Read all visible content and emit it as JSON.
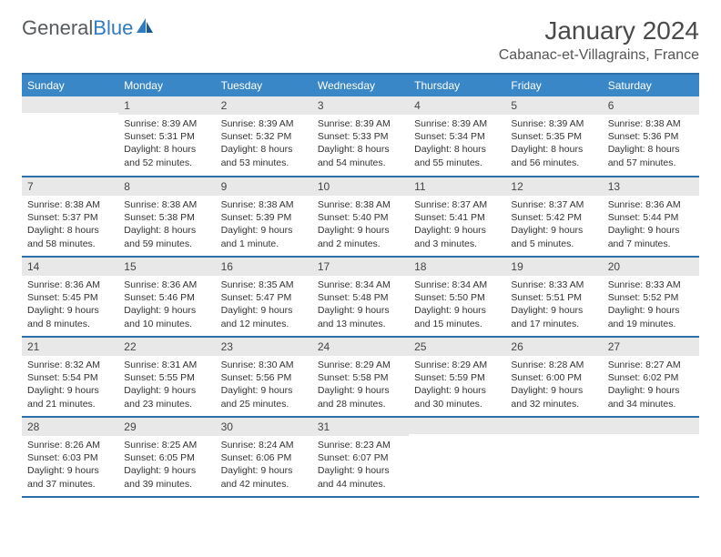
{
  "logo": {
    "part1": "General",
    "part2": "Blue"
  },
  "title": "January 2024",
  "location": "Cabanac-et-Villagrains, France",
  "colors": {
    "header_bg": "#3a87c7",
    "header_border": "#2f6fa8",
    "daynum_bg": "#e8e8e8",
    "text": "#333333"
  },
  "day_headers": [
    "Sunday",
    "Monday",
    "Tuesday",
    "Wednesday",
    "Thursday",
    "Friday",
    "Saturday"
  ],
  "weeks": [
    [
      {
        "num": "",
        "lines": []
      },
      {
        "num": "1",
        "lines": [
          "Sunrise: 8:39 AM",
          "Sunset: 5:31 PM",
          "Daylight: 8 hours",
          "and 52 minutes."
        ]
      },
      {
        "num": "2",
        "lines": [
          "Sunrise: 8:39 AM",
          "Sunset: 5:32 PM",
          "Daylight: 8 hours",
          "and 53 minutes."
        ]
      },
      {
        "num": "3",
        "lines": [
          "Sunrise: 8:39 AM",
          "Sunset: 5:33 PM",
          "Daylight: 8 hours",
          "and 54 minutes."
        ]
      },
      {
        "num": "4",
        "lines": [
          "Sunrise: 8:39 AM",
          "Sunset: 5:34 PM",
          "Daylight: 8 hours",
          "and 55 minutes."
        ]
      },
      {
        "num": "5",
        "lines": [
          "Sunrise: 8:39 AM",
          "Sunset: 5:35 PM",
          "Daylight: 8 hours",
          "and 56 minutes."
        ]
      },
      {
        "num": "6",
        "lines": [
          "Sunrise: 8:38 AM",
          "Sunset: 5:36 PM",
          "Daylight: 8 hours",
          "and 57 minutes."
        ]
      }
    ],
    [
      {
        "num": "7",
        "lines": [
          "Sunrise: 8:38 AM",
          "Sunset: 5:37 PM",
          "Daylight: 8 hours",
          "and 58 minutes."
        ]
      },
      {
        "num": "8",
        "lines": [
          "Sunrise: 8:38 AM",
          "Sunset: 5:38 PM",
          "Daylight: 8 hours",
          "and 59 minutes."
        ]
      },
      {
        "num": "9",
        "lines": [
          "Sunrise: 8:38 AM",
          "Sunset: 5:39 PM",
          "Daylight: 9 hours",
          "and 1 minute."
        ]
      },
      {
        "num": "10",
        "lines": [
          "Sunrise: 8:38 AM",
          "Sunset: 5:40 PM",
          "Daylight: 9 hours",
          "and 2 minutes."
        ]
      },
      {
        "num": "11",
        "lines": [
          "Sunrise: 8:37 AM",
          "Sunset: 5:41 PM",
          "Daylight: 9 hours",
          "and 3 minutes."
        ]
      },
      {
        "num": "12",
        "lines": [
          "Sunrise: 8:37 AM",
          "Sunset: 5:42 PM",
          "Daylight: 9 hours",
          "and 5 minutes."
        ]
      },
      {
        "num": "13",
        "lines": [
          "Sunrise: 8:36 AM",
          "Sunset: 5:44 PM",
          "Daylight: 9 hours",
          "and 7 minutes."
        ]
      }
    ],
    [
      {
        "num": "14",
        "lines": [
          "Sunrise: 8:36 AM",
          "Sunset: 5:45 PM",
          "Daylight: 9 hours",
          "and 8 minutes."
        ]
      },
      {
        "num": "15",
        "lines": [
          "Sunrise: 8:36 AM",
          "Sunset: 5:46 PM",
          "Daylight: 9 hours",
          "and 10 minutes."
        ]
      },
      {
        "num": "16",
        "lines": [
          "Sunrise: 8:35 AM",
          "Sunset: 5:47 PM",
          "Daylight: 9 hours",
          "and 12 minutes."
        ]
      },
      {
        "num": "17",
        "lines": [
          "Sunrise: 8:34 AM",
          "Sunset: 5:48 PM",
          "Daylight: 9 hours",
          "and 13 minutes."
        ]
      },
      {
        "num": "18",
        "lines": [
          "Sunrise: 8:34 AM",
          "Sunset: 5:50 PM",
          "Daylight: 9 hours",
          "and 15 minutes."
        ]
      },
      {
        "num": "19",
        "lines": [
          "Sunrise: 8:33 AM",
          "Sunset: 5:51 PM",
          "Daylight: 9 hours",
          "and 17 minutes."
        ]
      },
      {
        "num": "20",
        "lines": [
          "Sunrise: 8:33 AM",
          "Sunset: 5:52 PM",
          "Daylight: 9 hours",
          "and 19 minutes."
        ]
      }
    ],
    [
      {
        "num": "21",
        "lines": [
          "Sunrise: 8:32 AM",
          "Sunset: 5:54 PM",
          "Daylight: 9 hours",
          "and 21 minutes."
        ]
      },
      {
        "num": "22",
        "lines": [
          "Sunrise: 8:31 AM",
          "Sunset: 5:55 PM",
          "Daylight: 9 hours",
          "and 23 minutes."
        ]
      },
      {
        "num": "23",
        "lines": [
          "Sunrise: 8:30 AM",
          "Sunset: 5:56 PM",
          "Daylight: 9 hours",
          "and 25 minutes."
        ]
      },
      {
        "num": "24",
        "lines": [
          "Sunrise: 8:29 AM",
          "Sunset: 5:58 PM",
          "Daylight: 9 hours",
          "and 28 minutes."
        ]
      },
      {
        "num": "25",
        "lines": [
          "Sunrise: 8:29 AM",
          "Sunset: 5:59 PM",
          "Daylight: 9 hours",
          "and 30 minutes."
        ]
      },
      {
        "num": "26",
        "lines": [
          "Sunrise: 8:28 AM",
          "Sunset: 6:00 PM",
          "Daylight: 9 hours",
          "and 32 minutes."
        ]
      },
      {
        "num": "27",
        "lines": [
          "Sunrise: 8:27 AM",
          "Sunset: 6:02 PM",
          "Daylight: 9 hours",
          "and 34 minutes."
        ]
      }
    ],
    [
      {
        "num": "28",
        "lines": [
          "Sunrise: 8:26 AM",
          "Sunset: 6:03 PM",
          "Daylight: 9 hours",
          "and 37 minutes."
        ]
      },
      {
        "num": "29",
        "lines": [
          "Sunrise: 8:25 AM",
          "Sunset: 6:05 PM",
          "Daylight: 9 hours",
          "and 39 minutes."
        ]
      },
      {
        "num": "30",
        "lines": [
          "Sunrise: 8:24 AM",
          "Sunset: 6:06 PM",
          "Daylight: 9 hours",
          "and 42 minutes."
        ]
      },
      {
        "num": "31",
        "lines": [
          "Sunrise: 8:23 AM",
          "Sunset: 6:07 PM",
          "Daylight: 9 hours",
          "and 44 minutes."
        ]
      },
      {
        "num": "",
        "lines": []
      },
      {
        "num": "",
        "lines": []
      },
      {
        "num": "",
        "lines": []
      }
    ]
  ]
}
